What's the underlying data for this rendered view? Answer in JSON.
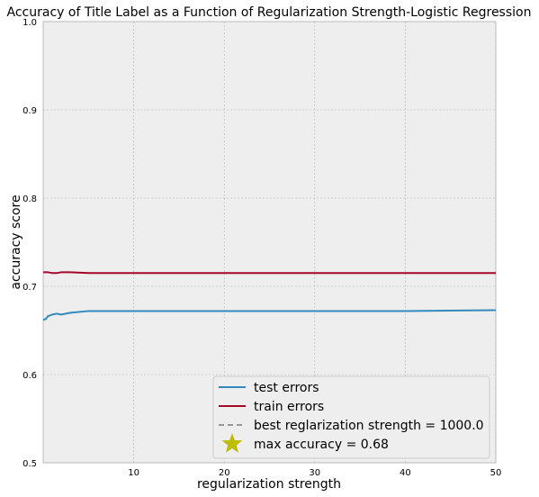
{
  "chart_data": {
    "type": "line",
    "title": "Accuracy of Title Label as a Function of Regularization Strength-Logistic Regression",
    "xlabel": "regularization strength",
    "ylabel": "accuracy score",
    "xlim": [
      0,
      50
    ],
    "ylim": [
      0.5,
      1.0
    ],
    "xticks": [
      "10",
      "20",
      "30",
      "40",
      "50"
    ],
    "yticks": [
      "0.5",
      "0.6",
      "0.7",
      "0.8",
      "0.9",
      "1.0"
    ],
    "grid": true,
    "legend_position": "lower-right",
    "series": [
      {
        "name": "test errors",
        "color": "#348ABD",
        "x": [
          0.001,
          0.3,
          0.5,
          1,
          1.5,
          2,
          3,
          5,
          10,
          20,
          30,
          40,
          50
        ],
        "y": [
          0.662,
          0.663,
          0.666,
          0.668,
          0.669,
          0.668,
          0.67,
          0.672,
          0.672,
          0.672,
          0.672,
          0.672,
          0.673
        ]
      },
      {
        "name": "train errors",
        "color": "#A60628",
        "x": [
          0.001,
          0.5,
          1,
          1.5,
          2,
          3,
          5,
          10,
          20,
          30,
          40,
          50
        ],
        "y": [
          0.716,
          0.716,
          0.715,
          0.715,
          0.716,
          0.716,
          0.715,
          0.715,
          0.715,
          0.715,
          0.715,
          0.715
        ]
      }
    ],
    "legend": [
      {
        "label": "test errors",
        "marker": "line",
        "color": "#348ABD"
      },
      {
        "label": "train errors",
        "marker": "line",
        "color": "#A60628"
      },
      {
        "label": "best reglarization strength = 1000.0",
        "marker": "dashed",
        "color": "#999999"
      },
      {
        "label": "max accuracy = 0.68",
        "marker": "star",
        "color": "#BCBC00"
      }
    ]
  }
}
